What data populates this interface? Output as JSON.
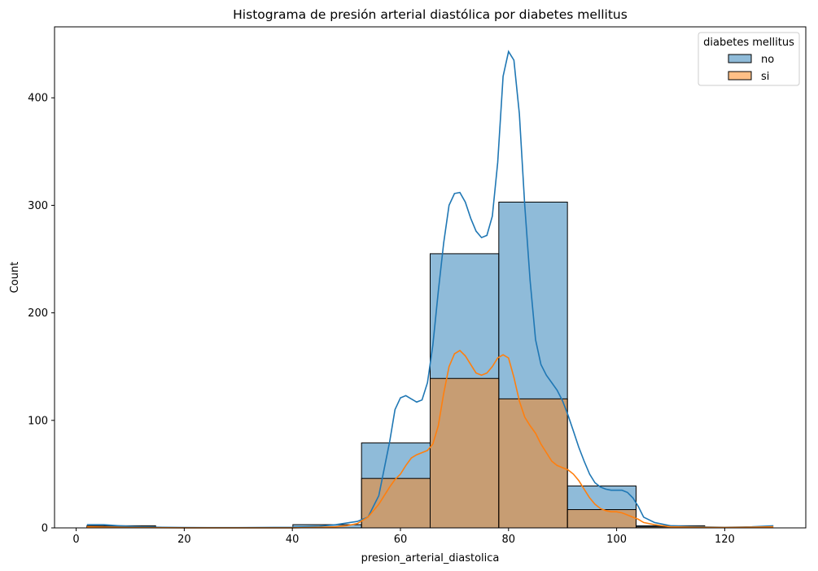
{
  "chart_data": {
    "type": "histogram",
    "title": "Histograma de presión arterial diastólica por diabetes mellitus",
    "xlabel": "presion_arterial_diastolica",
    "ylabel": "Count",
    "xlim": [
      -4,
      135
    ],
    "ylim": [
      0,
      466
    ],
    "x_ticks": [
      0,
      20,
      40,
      60,
      80,
      100,
      120
    ],
    "y_ticks": [
      0,
      100,
      200,
      300,
      400
    ],
    "bin_edges": [
      2,
      14.7,
      27.4,
      40.1,
      52.8,
      65.5,
      78.2,
      90.9,
      103.6,
      116.3,
      129
    ],
    "grid": false,
    "legend": {
      "title": "diabetes mellitus",
      "position": "top-right"
    },
    "series": [
      {
        "name": "no",
        "color": "#1f77b4",
        "fill_color": "#8db8db",
        "counts": [
          2,
          0,
          0,
          3,
          79,
          255,
          303,
          39,
          2,
          0
        ],
        "kde": [
          [
            2,
            3
          ],
          [
            5,
            3
          ],
          [
            8,
            2
          ],
          [
            12,
            1
          ],
          [
            16,
            0.5
          ],
          [
            20,
            0.3
          ],
          [
            30,
            0.2
          ],
          [
            40,
            0.5
          ],
          [
            45,
            1.5
          ],
          [
            48,
            3
          ],
          [
            52,
            6
          ],
          [
            54,
            10
          ],
          [
            56,
            30
          ],
          [
            58,
            80
          ],
          [
            59,
            110
          ],
          [
            60,
            121
          ],
          [
            61,
            123
          ],
          [
            62,
            120
          ],
          [
            63,
            117
          ],
          [
            64,
            119
          ],
          [
            65,
            135
          ],
          [
            66,
            170
          ],
          [
            67,
            220
          ],
          [
            68,
            265
          ],
          [
            69,
            300
          ],
          [
            70,
            311
          ],
          [
            71,
            312
          ],
          [
            72,
            303
          ],
          [
            73,
            288
          ],
          [
            74,
            276
          ],
          [
            75,
            270
          ],
          [
            76,
            272
          ],
          [
            77,
            290
          ],
          [
            78,
            340
          ],
          [
            79,
            420
          ],
          [
            80,
            443
          ],
          [
            81,
            435
          ],
          [
            82,
            385
          ],
          [
            83,
            300
          ],
          [
            84,
            230
          ],
          [
            85,
            175
          ],
          [
            86,
            152
          ],
          [
            87,
            142
          ],
          [
            88,
            135
          ],
          [
            89,
            128
          ],
          [
            90,
            118
          ],
          [
            91,
            105
          ],
          [
            92,
            90
          ],
          [
            93,
            75
          ],
          [
            94,
            62
          ],
          [
            95,
            50
          ],
          [
            96,
            42
          ],
          [
            97,
            38
          ],
          [
            98,
            36
          ],
          [
            99,
            35
          ],
          [
            100,
            35
          ],
          [
            101,
            35
          ],
          [
            102,
            33
          ],
          [
            103,
            28
          ],
          [
            104,
            20
          ],
          [
            105,
            10
          ],
          [
            107,
            5
          ],
          [
            110,
            2
          ],
          [
            115,
            1
          ],
          [
            120,
            0.5
          ],
          [
            125,
            1
          ],
          [
            129,
            2
          ]
        ]
      },
      {
        "name": "si",
        "color": "#ff7f0e",
        "fill_color": "#ffbb80",
        "counts": [
          1,
          0,
          0,
          0,
          46,
          139,
          120,
          17,
          1,
          0
        ],
        "kde": [
          [
            2,
            1
          ],
          [
            10,
            0.3
          ],
          [
            20,
            0.1
          ],
          [
            40,
            0.1
          ],
          [
            45,
            0.5
          ],
          [
            48,
            1
          ],
          [
            50,
            2
          ],
          [
            52,
            4
          ],
          [
            54,
            10
          ],
          [
            56,
            22
          ],
          [
            58,
            38
          ],
          [
            59,
            45
          ],
          [
            60,
            50
          ],
          [
            61,
            58
          ],
          [
            62,
            65
          ],
          [
            63,
            68
          ],
          [
            64,
            70
          ],
          [
            65,
            72
          ],
          [
            66,
            78
          ],
          [
            67,
            95
          ],
          [
            68,
            125
          ],
          [
            69,
            150
          ],
          [
            70,
            162
          ],
          [
            71,
            165
          ],
          [
            72,
            160
          ],
          [
            73,
            152
          ],
          [
            74,
            144
          ],
          [
            75,
            142
          ],
          [
            76,
            144
          ],
          [
            77,
            150
          ],
          [
            78,
            158
          ],
          [
            79,
            161
          ],
          [
            80,
            158
          ],
          [
            81,
            140
          ],
          [
            82,
            118
          ],
          [
            83,
            103
          ],
          [
            84,
            95
          ],
          [
            85,
            88
          ],
          [
            86,
            78
          ],
          [
            87,
            70
          ],
          [
            88,
            62
          ],
          [
            89,
            58
          ],
          [
            90,
            56
          ],
          [
            91,
            54
          ],
          [
            92,
            50
          ],
          [
            93,
            44
          ],
          [
            94,
            36
          ],
          [
            95,
            28
          ],
          [
            96,
            22
          ],
          [
            97,
            18
          ],
          [
            98,
            16
          ],
          [
            99,
            15
          ],
          [
            100,
            15
          ],
          [
            101,
            14
          ],
          [
            102,
            12
          ],
          [
            103,
            10
          ],
          [
            104,
            8
          ],
          [
            105,
            5
          ],
          [
            107,
            3
          ],
          [
            110,
            1
          ],
          [
            115,
            0.5
          ],
          [
            120,
            0.3
          ],
          [
            125,
            0.6
          ],
          [
            129,
            1
          ]
        ]
      }
    ]
  }
}
